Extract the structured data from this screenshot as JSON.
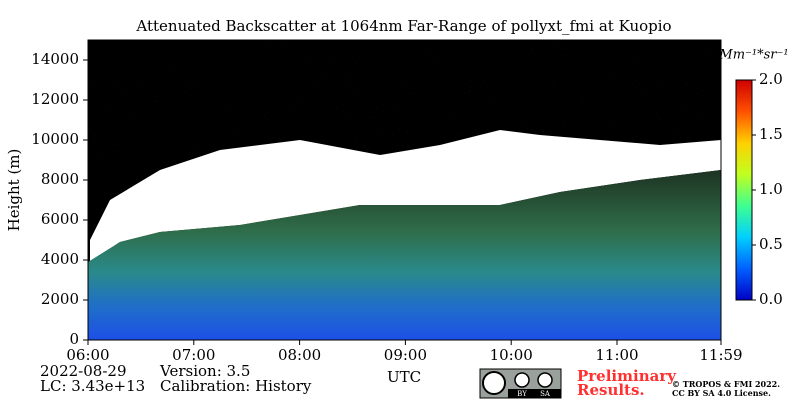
{
  "chart_data": {
    "type": "heatmap",
    "title": "Attenuated Backscatter at 1064nm Far-Range of pollyxt_fmi at Kuopio",
    "xlabel": "UTC",
    "ylabel": "Height (m)",
    "xlim": [
      6,
      11.983
    ],
    "xticks": [
      {
        "value": 6,
        "label": "06:00"
      },
      {
        "value": 7,
        "label": "07:00"
      },
      {
        "value": 8,
        "label": "08:00"
      },
      {
        "value": 9,
        "label": "09:00"
      },
      {
        "value": 10,
        "label": "10:00"
      },
      {
        "value": 11,
        "label": "11:00"
      },
      {
        "value": 11.983,
        "label": "11:59"
      }
    ],
    "ylim": [
      0,
      15000
    ],
    "yticks": [
      0,
      2000,
      4000,
      6000,
      8000,
      10000,
      12000,
      14000
    ],
    "colorbar_label": "Mm⁻¹*sr⁻¹",
    "clim": [
      0,
      2
    ],
    "cticks": [
      {
        "value": 0,
        "label": "0.0"
      },
      {
        "value": 0.5,
        "label": "0.5"
      },
      {
        "value": 1,
        "label": "1.0"
      },
      {
        "value": 1.5,
        "label": "1.5"
      },
      {
        "value": 2,
        "label": "2.0"
      }
    ],
    "colormap": [
      "#0000c8",
      "#0060ff",
      "#00d0ff",
      "#40ff90",
      "#c0ff20",
      "#ffd000",
      "#ff5000",
      "#d00000"
    ],
    "footer": {
      "date": "2022-08-29",
      "lc": "LC: 3.43e+13",
      "version": "Version: 3.5",
      "calibration": "Calibration: History",
      "notice": [
        "Preliminary",
        "Results."
      ],
      "copyright": [
        "© TROPOS & FMI 2022.",
        "CC BY SA 4.0 License."
      ],
      "badge": [
        "BY",
        "SA"
      ]
    }
  }
}
